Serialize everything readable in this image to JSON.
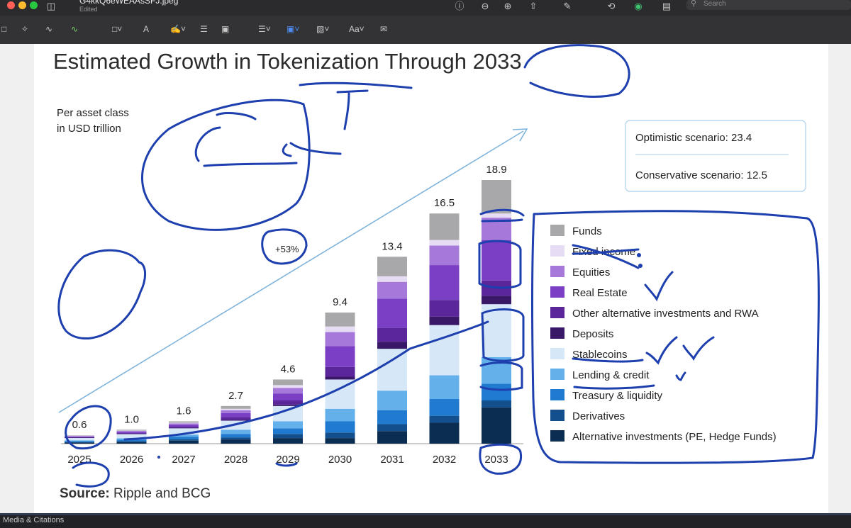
{
  "window": {
    "doc_title": "G4kkQ6eWEAAsSFJ.jpeg",
    "doc_status": "Edited",
    "search_placeholder": "Search"
  },
  "footer": {
    "left_label": "Media & Citations"
  },
  "slide": {
    "source_label": "Source:",
    "source_text": " Ripple and BCG"
  },
  "chart_data": {
    "type": "bar",
    "stacked": true,
    "title": "Estimated Growth in Tokenization Through 2033",
    "subtitle_lines": [
      "Per asset class",
      "in USD trillion"
    ],
    "categories": [
      "2025",
      "2026",
      "2027",
      "2028",
      "2029",
      "2030",
      "2031",
      "2032",
      "2033"
    ],
    "totals": [
      0.6,
      1.0,
      1.6,
      2.7,
      4.6,
      9.4,
      13.4,
      16.5,
      18.9
    ],
    "total_labels": [
      "0.6",
      "1.0",
      "1.6",
      "2.7",
      "4.6",
      "9.4",
      "13.4",
      "16.5",
      "18.9"
    ],
    "ylim": [
      0,
      20
    ],
    "growth_label": "+53%",
    "scenarios": [
      {
        "label": "Optimistic scenario: 23.4",
        "value": 23.4
      },
      {
        "label": "Conservative scenario: 12.5",
        "value": 12.5
      }
    ],
    "legend_position": "right",
    "series": [
      {
        "name": "Funds",
        "color": "#a8a8aa",
        "values": [
          0.03,
          0.06,
          0.1,
          0.2,
          0.4,
          1.0,
          1.4,
          1.9,
          2.4
        ]
      },
      {
        "name": "Fixed income",
        "color": "#e6dcf3",
        "values": [
          0.02,
          0.03,
          0.05,
          0.1,
          0.2,
          0.4,
          0.4,
          0.4,
          0.3
        ]
      },
      {
        "name": "Equities",
        "color": "#a678da",
        "values": [
          0.04,
          0.07,
          0.1,
          0.2,
          0.4,
          1.0,
          1.2,
          1.4,
          1.6
        ]
      },
      {
        "name": "Real Estate",
        "color": "#7b3fc6",
        "values": [
          0.05,
          0.08,
          0.13,
          0.3,
          0.5,
          1.5,
          2.1,
          2.5,
          2.9
        ]
      },
      {
        "name": "Other alternative investments and RWA",
        "color": "#5a2699",
        "values": [
          0.03,
          0.05,
          0.08,
          0.2,
          0.3,
          0.7,
          1.0,
          1.2,
          1.1
        ]
      },
      {
        "name": "Deposits",
        "color": "#3a1868",
        "values": [
          0.01,
          0.02,
          0.04,
          0.05,
          0.1,
          0.2,
          0.5,
          0.6,
          0.6
        ]
      },
      {
        "name": "Stablecoins",
        "color": "#d6e8f8",
        "values": [
          0.18,
          0.3,
          0.45,
          0.65,
          1.1,
          2.1,
          3.0,
          3.6,
          3.8
        ]
      },
      {
        "name": "Lending & credit",
        "color": "#64b0ea",
        "values": [
          0.06,
          0.1,
          0.15,
          0.3,
          0.5,
          0.9,
          1.4,
          1.7,
          1.9
        ]
      },
      {
        "name": "Treasury & liquidity",
        "color": "#1f7ad0",
        "values": [
          0.06,
          0.11,
          0.18,
          0.25,
          0.4,
          0.8,
          1.0,
          1.2,
          1.2
        ]
      },
      {
        "name": "Derivatives",
        "color": "#124f8c",
        "values": [
          0.04,
          0.06,
          0.1,
          0.15,
          0.3,
          0.4,
          0.5,
          0.5,
          0.5
        ]
      },
      {
        "name": "Alternative investments (PE, Hedge Funds)",
        "color": "#0b2d52",
        "values": [
          0.08,
          0.12,
          0.22,
          0.3,
          0.4,
          0.4,
          0.9,
          1.5,
          2.6
        ]
      }
    ]
  }
}
